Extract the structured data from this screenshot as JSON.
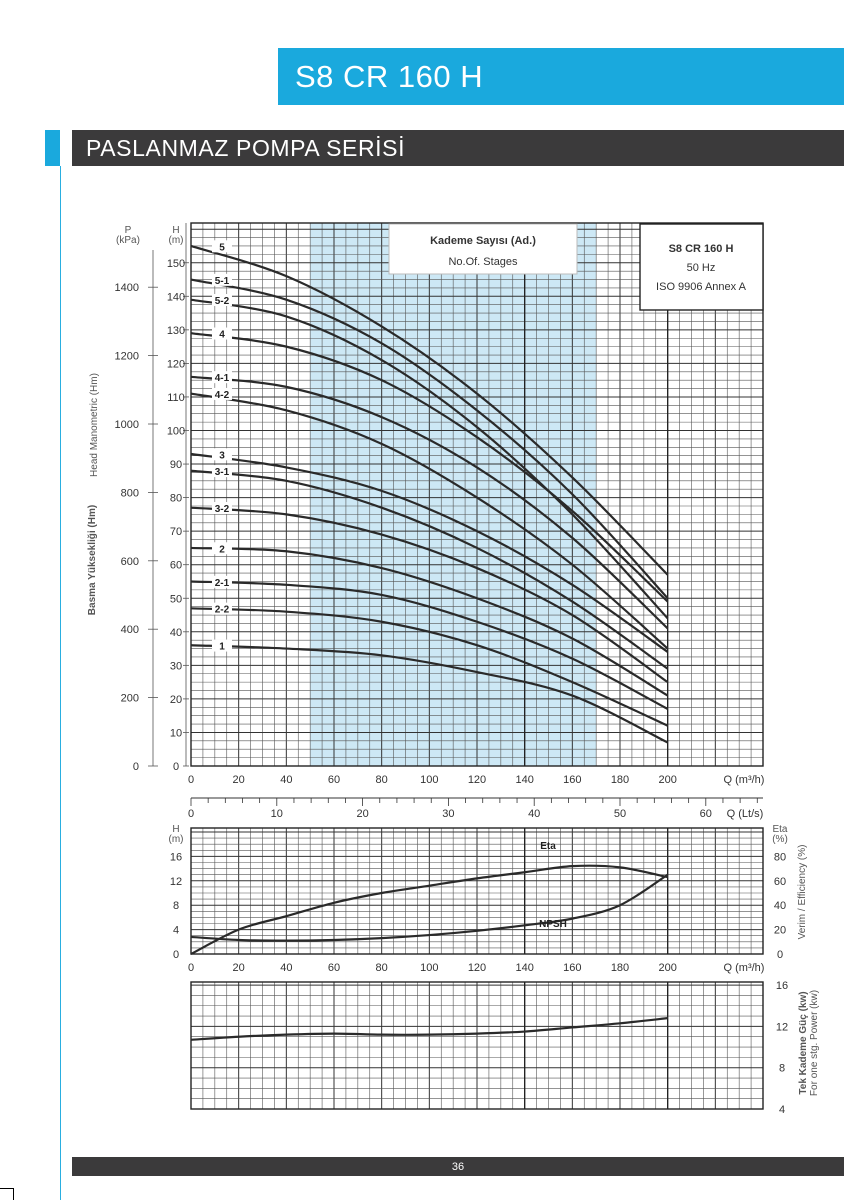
{
  "header": {
    "model_title": "S8 CR 160 H"
  },
  "section": {
    "title": "PASLANMAZ POMPA SERİSİ"
  },
  "footer": {
    "page_number": "36"
  },
  "legend": {
    "stages_title_tr": "Kademe Sayısı (Ad.)",
    "stages_title_en": "No.Of. Stages",
    "model": "S8 CR 160 H",
    "frequency": "50 Hz",
    "standard": "ISO 9906 Annex A"
  },
  "colors": {
    "accent": "#1aa9dd",
    "dark_bar": "#3b3a3b",
    "highlight_band": "#cde8f5"
  },
  "chart_data": [
    {
      "type": "line",
      "ylabel_left_tr": "Basma Yüksekliği (Hm)",
      "ylabel_left_en": "Head Manometric (Hm)",
      "y_left_unit": "H (m)",
      "y_left_ticks": [
        0,
        10,
        20,
        30,
        40,
        50,
        60,
        70,
        80,
        90,
        100,
        110,
        120,
        130,
        140,
        150
      ],
      "y_pressure_unit_top": "P",
      "y_pressure_unit_bottom": "(kPa)",
      "y_pressure_ticks": [
        0,
        200,
        400,
        600,
        800,
        1000,
        1200,
        1400
      ],
      "xlabel": "Q (m³/h)",
      "x_ticks": [
        0,
        20,
        40,
        60,
        80,
        100,
        120,
        140,
        160,
        180,
        200
      ],
      "xlim": [
        0,
        240
      ],
      "ylim": [
        0,
        162
      ],
      "recommended_range": [
        50,
        170
      ],
      "series": [
        {
          "name": "5",
          "x": [
            0,
            40,
            80,
            120,
            160,
            200
          ],
          "y": [
            155,
            146,
            131,
            111,
            86,
            57
          ]
        },
        {
          "name": "5-1",
          "x": [
            0,
            40,
            80,
            120,
            160,
            200
          ],
          "y": [
            145,
            139,
            126,
            106,
            81,
            50
          ]
        },
        {
          "name": "5-2",
          "x": [
            0,
            40,
            80,
            120,
            160,
            200
          ],
          "y": [
            139,
            134,
            121,
            101,
            75,
            44
          ]
        },
        {
          "name": "4",
          "x": [
            0,
            40,
            80,
            120,
            160,
            200
          ],
          "y": [
            129,
            125,
            115,
            98,
            76,
            49
          ]
        },
        {
          "name": "4-1",
          "x": [
            0,
            40,
            80,
            120,
            160,
            200
          ],
          "y": [
            116,
            113,
            104,
            89,
            68,
            41
          ]
        },
        {
          "name": "4-2",
          "x": [
            0,
            40,
            80,
            120,
            160,
            200
          ],
          "y": [
            111,
            106,
            96,
            80,
            60,
            35
          ]
        },
        {
          "name": "3",
          "x": [
            0,
            40,
            80,
            120,
            160,
            200
          ],
          "y": [
            93,
            89,
            82,
            70,
            54,
            34
          ]
        },
        {
          "name": "3-1",
          "x": [
            0,
            40,
            80,
            120,
            160,
            200
          ],
          "y": [
            88,
            85,
            77,
            65,
            49,
            29
          ]
        },
        {
          "name": "3-2",
          "x": [
            0,
            40,
            80,
            120,
            160,
            200
          ],
          "y": [
            77,
            75,
            69,
            59,
            45,
            25
          ]
        },
        {
          "name": "2",
          "x": [
            0,
            40,
            80,
            120,
            160,
            200
          ],
          "y": [
            65,
            64,
            59,
            50,
            38,
            21
          ]
        },
        {
          "name": "2-1",
          "x": [
            0,
            40,
            80,
            120,
            160,
            200
          ],
          "y": [
            55,
            54,
            51,
            43,
            32,
            17
          ]
        },
        {
          "name": "2-2",
          "x": [
            0,
            40,
            80,
            120,
            160,
            200
          ],
          "y": [
            47,
            46,
            43,
            36,
            25,
            12
          ]
        },
        {
          "name": "1",
          "x": [
            0,
            40,
            80,
            120,
            160,
            200
          ],
          "y": [
            36,
            35,
            33,
            28,
            21,
            7
          ]
        }
      ]
    },
    {
      "type": "table",
      "label": "Q (Lt/s)",
      "x_ticks": [
        0,
        10,
        20,
        30,
        40,
        50,
        60
      ]
    },
    {
      "type": "line",
      "ylabel_left": "H (m)",
      "y_left_ticks": [
        0,
        4,
        8,
        12,
        16
      ],
      "ylabel_right_tr": "Verim / Efficiency (%)",
      "y_right_unit_top": "Eta",
      "y_right_unit_bottom": "(%)",
      "y_right_ticks": [
        0,
        20,
        40,
        60,
        80
      ],
      "xlabel": "Q (m³/h)",
      "x_ticks": [
        0,
        20,
        40,
        60,
        80,
        100,
        120,
        140,
        160,
        180,
        200
      ],
      "ylim": [
        0,
        20
      ],
      "series": [
        {
          "name": "Eta",
          "x": [
            0,
            20,
            40,
            60,
            80,
            100,
            120,
            140,
            160,
            180,
            200
          ],
          "y": [
            0,
            20,
            31,
            42,
            50,
            56,
            62,
            67,
            72,
            71,
            63
          ]
        },
        {
          "name": "NPSH",
          "x": [
            0,
            20,
            40,
            60,
            80,
            100,
            120,
            140,
            160,
            180,
            200
          ],
          "y": [
            2.8,
            2.3,
            2.2,
            2.3,
            2.6,
            3.1,
            3.8,
            4.7,
            5.8,
            8.0,
            13
          ]
        }
      ]
    },
    {
      "type": "line",
      "ylabel_right_tr": "Tek Kademe Güç (kw)",
      "ylabel_right_en": "For one stg. Power (kw)",
      "y_right_ticks": [
        4,
        8,
        12,
        16
      ],
      "ylim": [
        4,
        16
      ],
      "series": [
        {
          "name": "Power",
          "x": [
            0,
            20,
            40,
            60,
            80,
            100,
            120,
            140,
            160,
            180,
            200
          ],
          "y": [
            10.7,
            11.0,
            11.2,
            11.3,
            11.2,
            11.2,
            11.3,
            11.5,
            11.9,
            12.3,
            12.8
          ]
        }
      ]
    }
  ]
}
